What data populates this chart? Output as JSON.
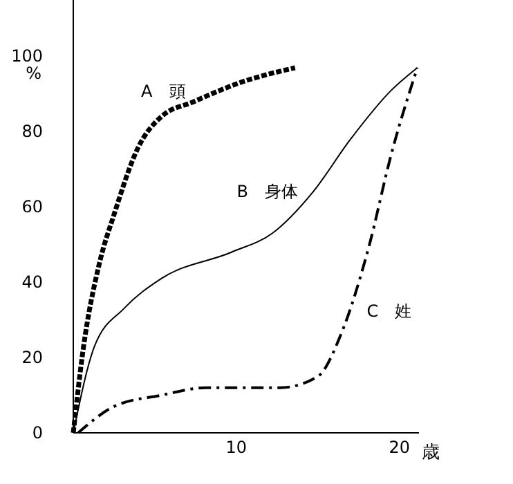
{
  "chart_data": {
    "type": "line",
    "xlabel": "歳",
    "ylabel": "%",
    "xlim": [
      0,
      21.2
    ],
    "ylim": [
      0,
      115
    ],
    "xticks": [
      10,
      20
    ],
    "yticks": [
      0,
      20,
      40,
      60,
      80,
      100
    ],
    "grid": false,
    "marker": "none",
    "series": [
      {
        "name": "A　頭",
        "color": "#000000",
        "line_style": "dotted",
        "x": [
          0,
          0.6,
          1.6,
          2.5,
          4.0,
          5.4,
          7.4,
          10.2,
          13.6
        ],
        "values": [
          0,
          22,
          45,
          58,
          76,
          84,
          88,
          93,
          97
        ]
      },
      {
        "name": "B　身体",
        "color": "#000000",
        "line_style": "solid",
        "x": [
          0,
          1.3,
          3.1,
          5.4,
          9.7,
          12.2,
          14.7,
          17,
          19.5,
          21.1
        ],
        "values": [
          0,
          23,
          33,
          41,
          48,
          53,
          64,
          78,
          91,
          97
        ]
      },
      {
        "name": "C　姓",
        "color": "#000000",
        "line_style": "dashed",
        "x": [
          0.3,
          2.5,
          5.4,
          8.2,
          12.7,
          15,
          16.4,
          18.1,
          19.5,
          21.1
        ],
        "values": [
          0,
          7,
          10,
          12,
          12,
          15,
          26,
          49,
          74,
          97
        ]
      }
    ]
  }
}
